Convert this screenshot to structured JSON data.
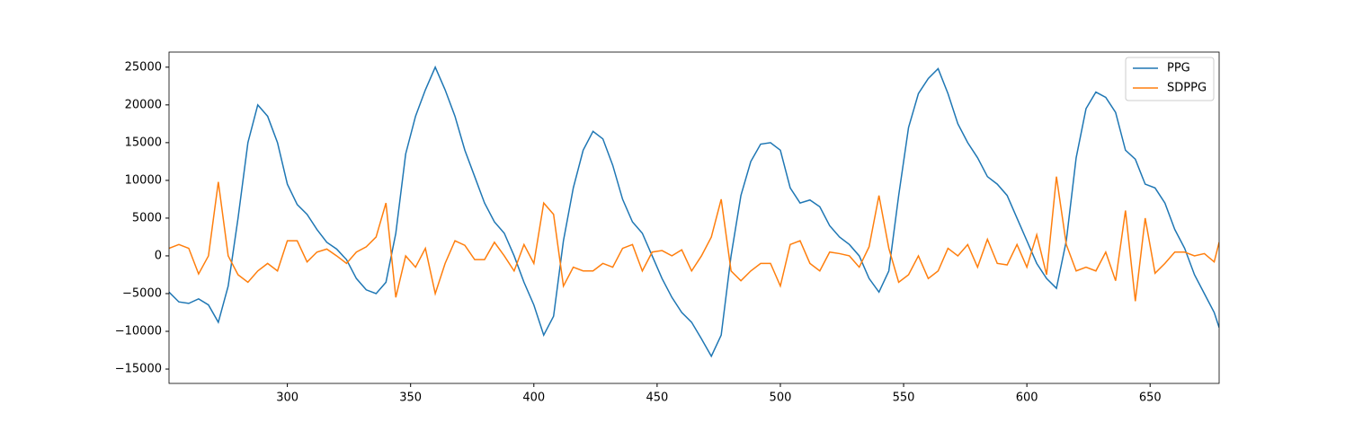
{
  "chart_data": {
    "type": "line",
    "x": [
      252,
      256,
      260,
      264,
      268,
      272,
      276,
      280,
      284,
      288,
      292,
      296,
      300,
      304,
      308,
      312,
      316,
      320,
      324,
      328,
      332,
      336,
      340,
      344,
      348,
      352,
      356,
      360,
      364,
      368,
      372,
      376,
      380,
      384,
      388,
      392,
      396,
      400,
      404,
      408,
      412,
      416,
      420,
      424,
      428,
      432,
      436,
      440,
      444,
      448,
      452,
      456,
      460,
      464,
      468,
      472,
      476,
      480,
      484,
      488,
      492,
      496,
      500,
      504,
      508,
      512,
      516,
      520,
      524,
      528,
      532,
      536,
      540,
      544,
      548,
      552,
      556,
      560,
      564,
      568,
      572,
      576,
      580,
      584,
      588,
      592,
      596,
      600,
      604,
      608,
      612,
      616,
      620,
      624,
      628,
      632,
      636,
      640,
      644,
      648,
      652,
      656,
      660,
      664,
      668,
      672,
      676,
      678
    ],
    "series": [
      {
        "name": "PPG",
        "color": "#1f77b4",
        "values": [
          -4800,
          -6100,
          -6300,
          -5700,
          -6500,
          -8800,
          -4000,
          5000,
          15000,
          20000,
          18500,
          15000,
          9500,
          6800,
          5500,
          3500,
          1800,
          900,
          -500,
          -3000,
          -4500,
          -5000,
          -3500,
          3000,
          13500,
          18500,
          22000,
          25000,
          22000,
          18500,
          14000,
          10500,
          7000,
          4500,
          3000,
          0,
          -3500,
          -6500,
          -10500,
          -8000,
          2000,
          9000,
          14000,
          16500,
          15500,
          12000,
          7500,
          4500,
          3000,
          0,
          -3000,
          -5500,
          -7500,
          -8800,
          -11000,
          -13300,
          -10500,
          0,
          8000,
          12500,
          14800,
          15000,
          14000,
          9000,
          7000,
          7400,
          6500,
          4000,
          2500,
          1500,
          0,
          -3000,
          -4800,
          -2000,
          8000,
          17000,
          21500,
          23500,
          24800,
          21500,
          17500,
          15000,
          13000,
          10500,
          9500,
          8000,
          5000,
          2000,
          -1000,
          -3000,
          -4300,
          2000,
          13000,
          19500,
          21700,
          21000,
          19000,
          14000,
          12800,
          9500,
          9000,
          7000,
          3500,
          1000,
          -2500,
          -5000,
          -7500,
          -9500
        ]
      },
      {
        "name": "SDPPG",
        "color": "#ff7f0e",
        "values": [
          1000,
          1500,
          1000,
          -2400,
          0,
          9800,
          0,
          -2500,
          -3500,
          -2000,
          -1000,
          -2000,
          2000,
          2000,
          -800,
          500,
          900,
          0,
          -1000,
          500,
          1200,
          2500,
          7000,
          -5500,
          0,
          -1500,
          1000,
          -5000,
          -1000,
          2000,
          1400,
          -500,
          -500,
          1800,
          0,
          -2000,
          1500,
          -1000,
          7000,
          5500,
          -4000,
          -1500,
          -2000,
          -2000,
          -1000,
          -1500,
          1000,
          1500,
          -2000,
          500,
          700,
          0,
          800,
          -2000,
          0,
          2500,
          7500,
          -2000,
          -3300,
          -2000,
          -1000,
          -1000,
          -4000,
          1500,
          2000,
          -1000,
          -2000,
          500,
          300,
          0,
          -1500,
          1200,
          8000,
          1000,
          -3500,
          -2500,
          0,
          -3000,
          -2000,
          1000,
          0,
          1500,
          -1500,
          2200,
          -1000,
          -1200,
          1500,
          -1500,
          2800,
          -2500,
          10500,
          1500,
          -2000,
          -1500,
          -2000,
          500,
          -3300,
          6000,
          -6000,
          5000,
          -2300,
          -1000,
          500,
          500,
          0,
          300,
          -800,
          1800
        ]
      }
    ],
    "xlim": [
      252,
      678
    ],
    "ylim": [
      -16900,
      27000
    ],
    "xticks": [
      300,
      350,
      400,
      450,
      500,
      550,
      600,
      650
    ],
    "yticks": [
      {
        "value": -15000,
        "label": "−15000"
      },
      {
        "value": -10000,
        "label": "−10000"
      },
      {
        "value": -5000,
        "label": "−5000"
      },
      0,
      5000,
      10000,
      15000,
      20000,
      25000
    ],
    "legend": "upper right"
  }
}
